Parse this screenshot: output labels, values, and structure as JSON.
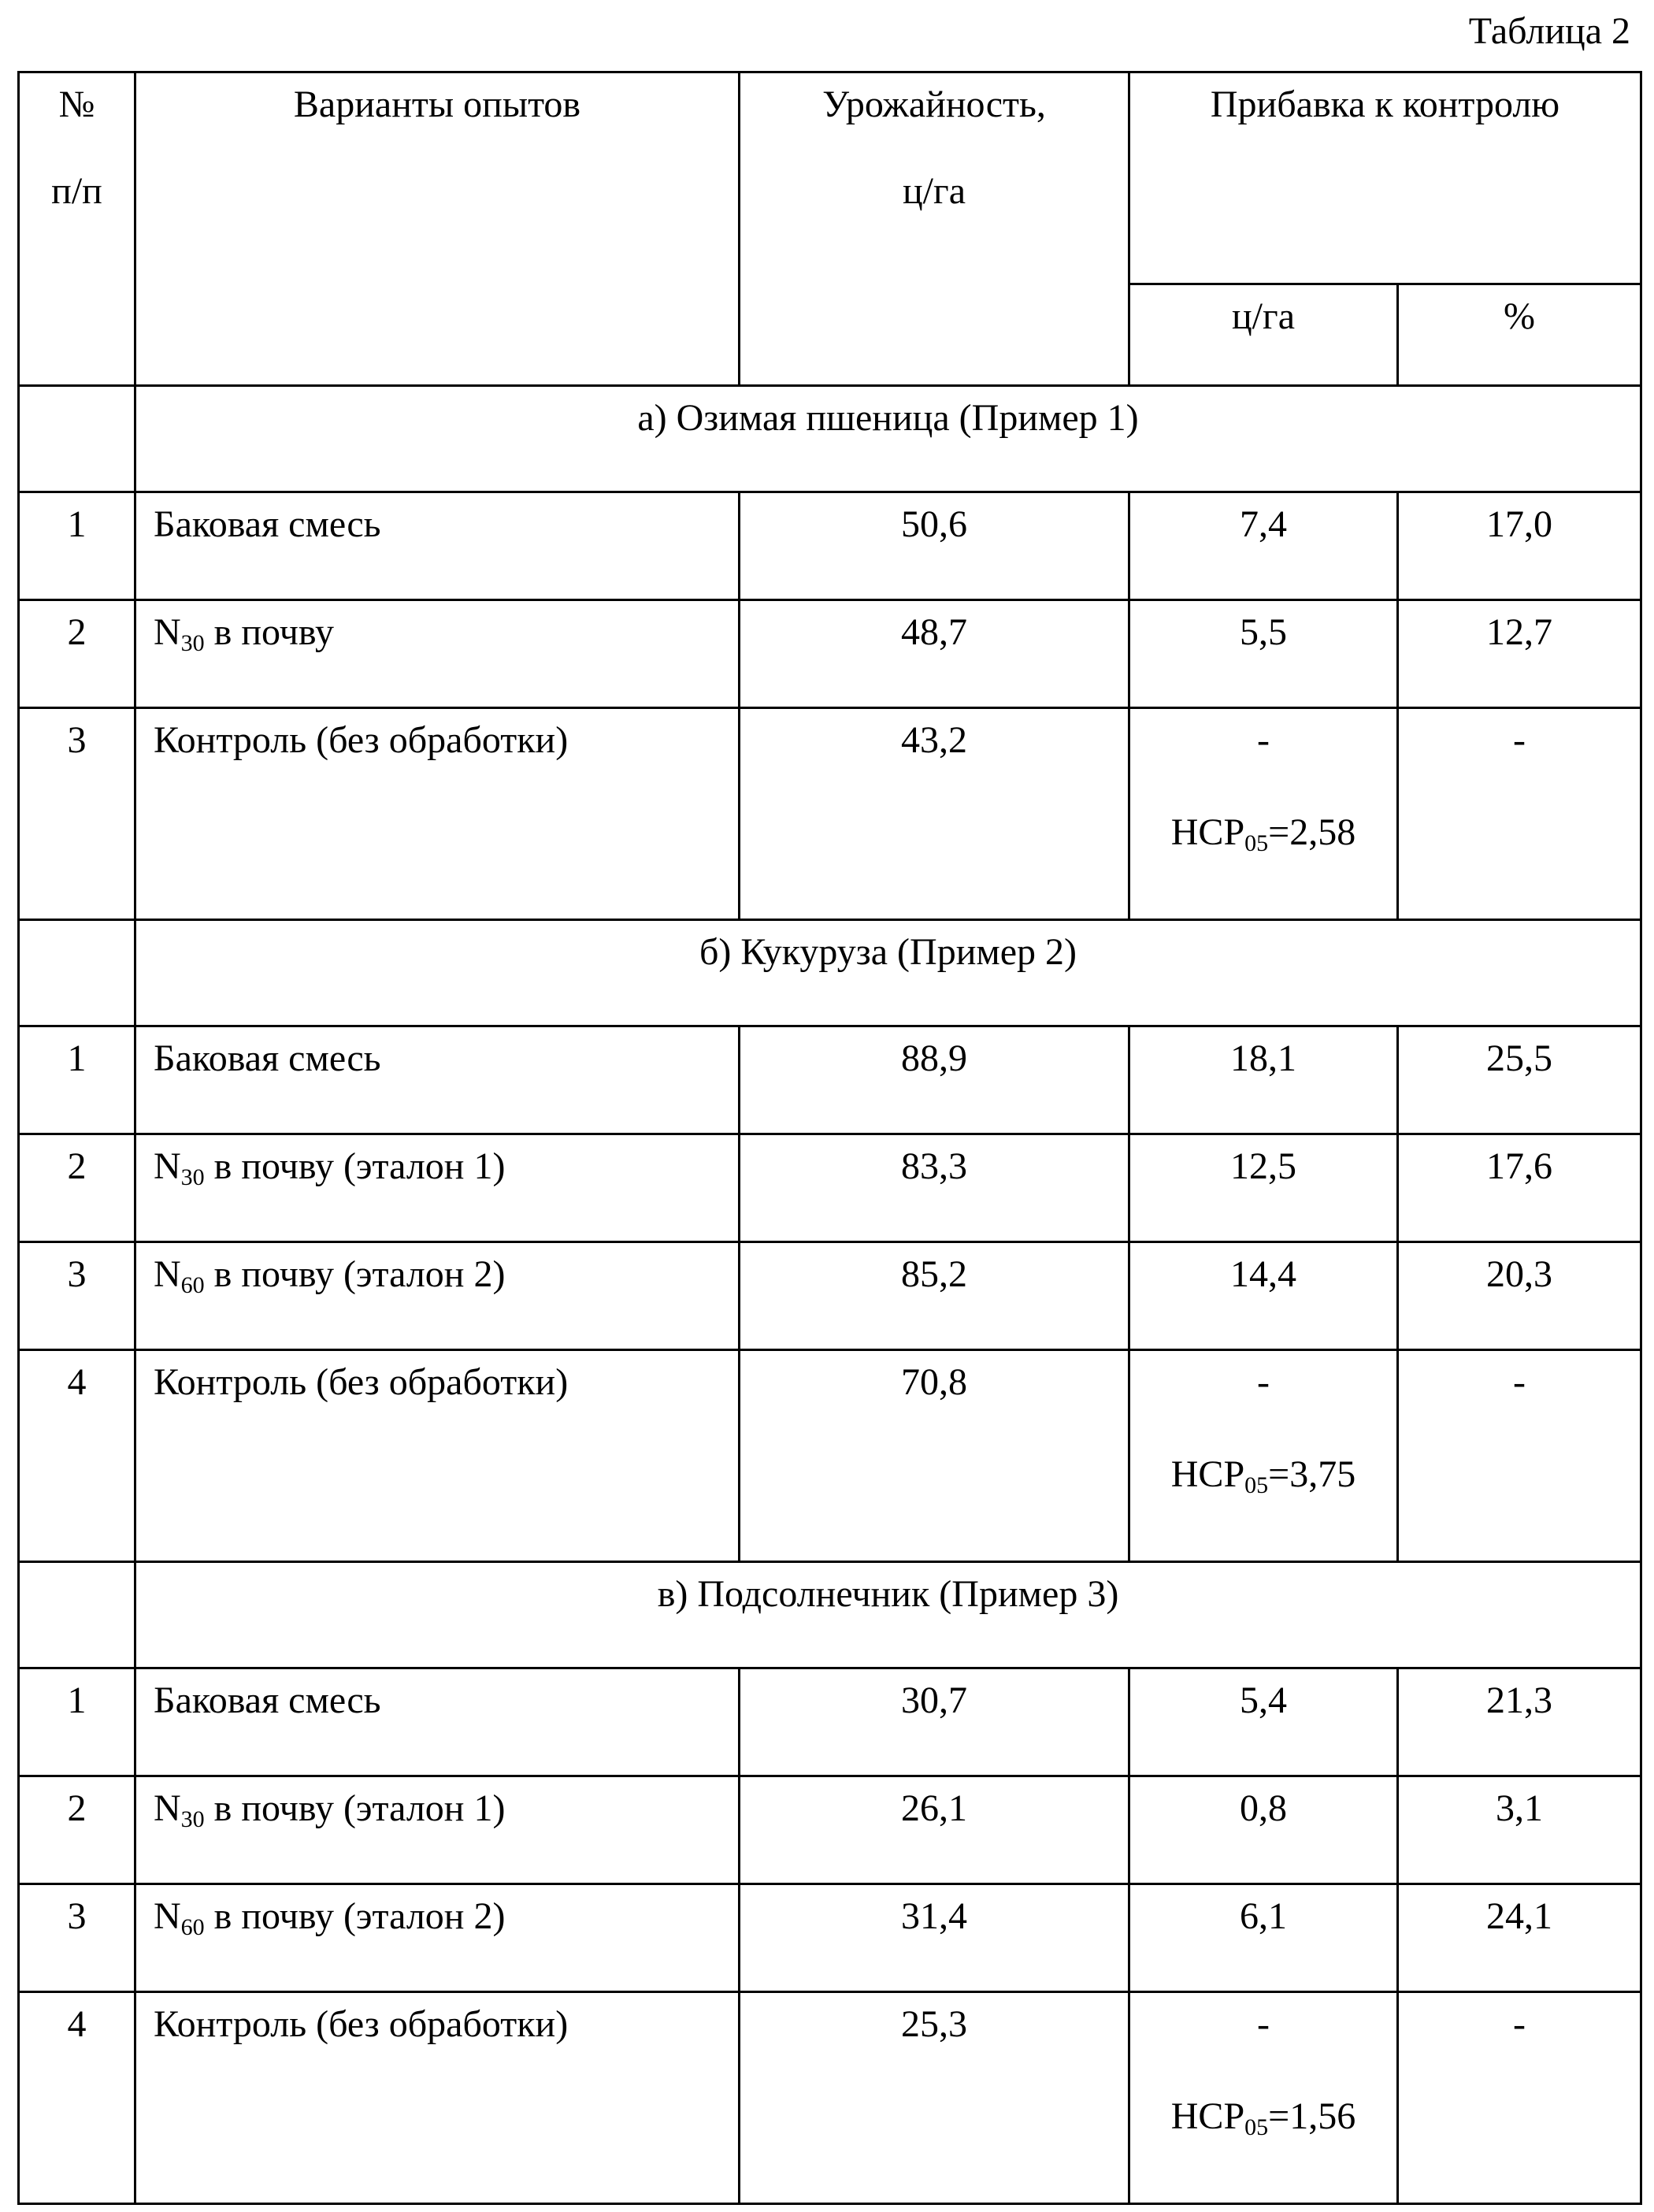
{
  "caption": "Таблица 2",
  "header": {
    "num_line1": "№",
    "num_line2": "п/п",
    "variants": "Варианты опытов",
    "yield_line1": "Урожайность,",
    "yield_line2": "ц/га",
    "increase": "Прибавка к контролю",
    "inc_unit_abs": "ц/га",
    "inc_unit_pct": "%"
  },
  "sections": [
    {
      "title": "а) Озимая пшеница (Пример 1)",
      "rows": [
        {
          "n": "1",
          "name": "Баковая смесь",
          "sub": "",
          "suffix": "",
          "yield": "50,6",
          "abs": "7,4",
          "pct": "17,0"
        },
        {
          "n": "2",
          "name": "N",
          "sub": "30",
          "suffix": " в почву",
          "yield": "48,7",
          "abs": "5,5",
          "pct": "12,7"
        },
        {
          "n": "3",
          "name": "Контроль (без обработки)",
          "sub": "",
          "suffix": "",
          "yield": "43,2",
          "abs": "-",
          "pct": "-"
        }
      ],
      "hcp": {
        "label": "НСР",
        "sub": "05",
        "value": "=2,58"
      }
    },
    {
      "title": "б) Кукуруза (Пример 2)",
      "rows": [
        {
          "n": "1",
          "name": "Баковая смесь",
          "sub": "",
          "suffix": "",
          "yield": "88,9",
          "abs": "18,1",
          "pct": "25,5"
        },
        {
          "n": "2",
          "name": "N",
          "sub": "30",
          "suffix": " в почву (эталон 1)",
          "yield": "83,3",
          "abs": "12,5",
          "pct": "17,6"
        },
        {
          "n": "3",
          "name": "N",
          "sub": "60",
          "suffix": " в почву (эталон 2)",
          "yield": "85,2",
          "abs": "14,4",
          "pct": "20,3"
        },
        {
          "n": "4",
          "name": "Контроль (без обработки)",
          "sub": "",
          "suffix": "",
          "yield": "70,8",
          "abs": "-",
          "pct": "-"
        }
      ],
      "hcp": {
        "label": "НСР",
        "sub": "05",
        "value": "=3,75"
      }
    },
    {
      "title": "в) Подсолнечник (Пример 3)",
      "rows": [
        {
          "n": "1",
          "name": "Баковая смесь",
          "sub": "",
          "suffix": "",
          "yield": "30,7",
          "abs": "5,4",
          "pct": "21,3"
        },
        {
          "n": "2",
          "name": "N",
          "sub": "30",
          "suffix": " в почву (эталон 1)",
          "yield": "26,1",
          "abs": "0,8",
          "pct": "3,1"
        },
        {
          "n": "3",
          "name": "N",
          "sub": "60",
          "suffix": " в почву (эталон 2)",
          "yield": "31,4",
          "abs": "6,1",
          "pct": "24,1"
        },
        {
          "n": "4",
          "name": "Контроль (без обработки)",
          "sub": "",
          "suffix": "",
          "yield": "25,3",
          "abs": "-",
          "pct": "-"
        }
      ],
      "hcp": {
        "label": "НСР",
        "sub": "05",
        "value": "=1,56"
      }
    }
  ]
}
